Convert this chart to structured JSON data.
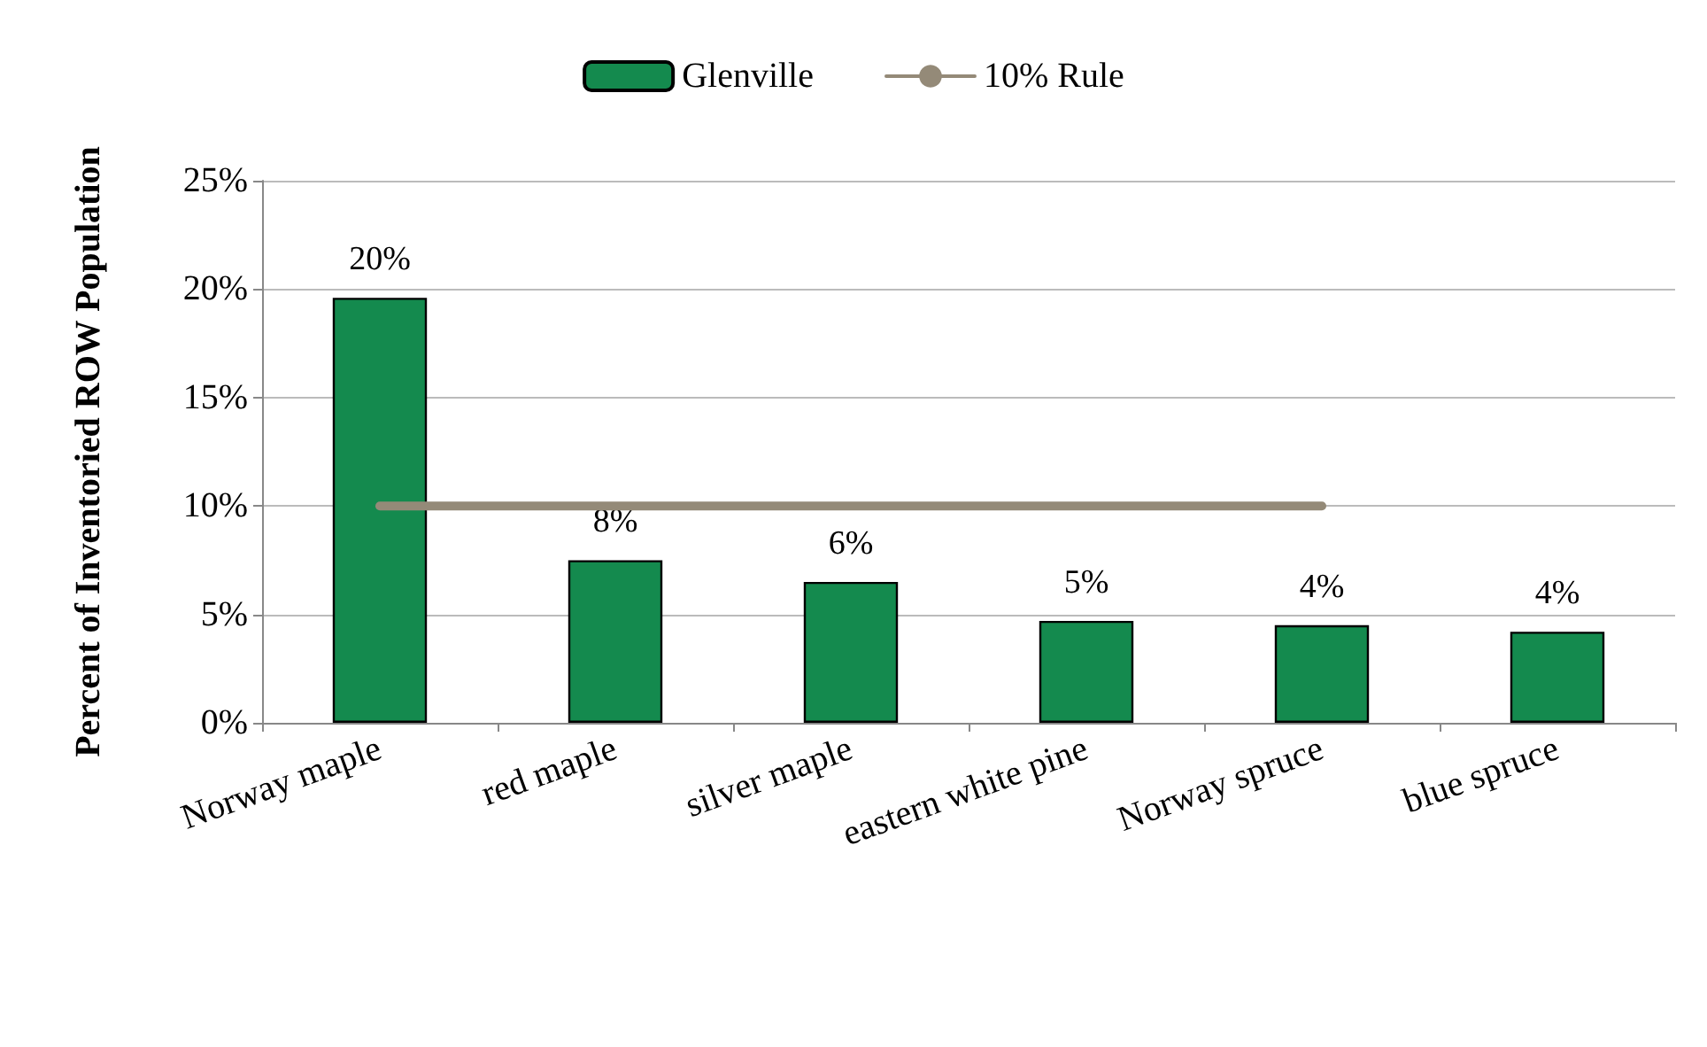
{
  "chart_data": {
    "type": "bar",
    "ylabel": "Percent of Inventoried ROW Population",
    "categories": [
      "Norway maple",
      "red maple",
      "silver maple",
      "eastern white pine",
      "Norway spruce",
      "blue spruce"
    ],
    "series": [
      {
        "name": "Glenville",
        "color": "#148a4e",
        "values": [
          19.6,
          7.5,
          6.5,
          4.7,
          4.5,
          4.2
        ],
        "value_labels": [
          "20%",
          "8%",
          "6%",
          "5%",
          "4%",
          "4%"
        ]
      },
      {
        "name": "10% Rule",
        "type": "line",
        "color": "#948a78",
        "values": [
          10,
          10,
          10,
          10,
          10,
          null
        ]
      }
    ],
    "ylim": [
      0,
      25
    ],
    "yticks": [
      {
        "value": 0,
        "label": "0%"
      },
      {
        "value": 5,
        "label": "5%"
      },
      {
        "value": 10,
        "label": "10%"
      },
      {
        "value": 15,
        "label": "15%"
      },
      {
        "value": 20,
        "label": "20%"
      },
      {
        "value": 25,
        "label": "25%"
      }
    ],
    "grid": "y",
    "legend": "top",
    "marker": "none"
  }
}
